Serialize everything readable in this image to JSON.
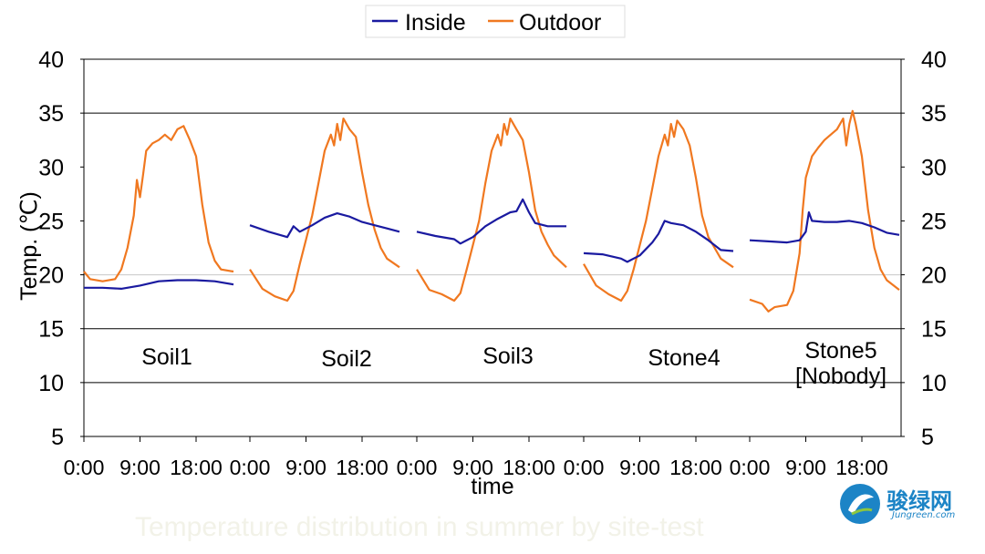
{
  "chart_data": {
    "type": "line",
    "title": "",
    "xlabel": "time",
    "ylabel": "Temp. (℃)",
    "ylim": [
      5,
      40
    ],
    "yticks": [
      40,
      35,
      30,
      25,
      20,
      15,
      10,
      5
    ],
    "xticks_per_panel": [
      "0:00",
      "9:00",
      "18:00"
    ],
    "gridlines": [
      35,
      20,
      15,
      10
    ],
    "legend": {
      "position": "top-center",
      "entries": [
        "Inside",
        "Outdoor"
      ]
    },
    "colors": {
      "Inside": "#1a1aa0",
      "Outdoor": "#f07820"
    },
    "panels": [
      {
        "label": "Soil1",
        "inside": [
          [
            0,
            18.8
          ],
          [
            3,
            18.8
          ],
          [
            6,
            18.7
          ],
          [
            9,
            19.0
          ],
          [
            12,
            19.4
          ],
          [
            15,
            19.5
          ],
          [
            18,
            19.5
          ],
          [
            21,
            19.4
          ],
          [
            24,
            19.1
          ]
        ],
        "outdoor": [
          [
            0,
            20.3
          ],
          [
            1,
            19.6
          ],
          [
            3,
            19.4
          ],
          [
            5,
            19.6
          ],
          [
            6,
            20.5
          ],
          [
            7,
            22.5
          ],
          [
            8,
            25.5
          ],
          [
            8.5,
            28.8
          ],
          [
            9,
            27.2
          ],
          [
            9.5,
            29.3
          ],
          [
            10,
            31.5
          ],
          [
            11,
            32.2
          ],
          [
            12,
            32.5
          ],
          [
            13,
            33.0
          ],
          [
            14,
            32.5
          ],
          [
            15,
            33.5
          ],
          [
            16,
            33.8
          ],
          [
            17,
            32.5
          ],
          [
            18,
            31.0
          ],
          [
            19,
            26.5
          ],
          [
            20,
            23.0
          ],
          [
            21,
            21.3
          ],
          [
            22,
            20.5
          ],
          [
            24,
            20.3
          ]
        ]
      },
      {
        "label": "Soil2",
        "inside": [
          [
            0,
            24.6
          ],
          [
            3,
            24.0
          ],
          [
            6,
            23.5
          ],
          [
            7,
            24.5
          ],
          [
            8,
            24.0
          ],
          [
            10,
            24.6
          ],
          [
            12,
            25.3
          ],
          [
            14,
            25.7
          ],
          [
            16,
            25.4
          ],
          [
            18,
            24.9
          ],
          [
            20,
            24.6
          ],
          [
            22,
            24.3
          ],
          [
            24,
            24.0
          ]
        ],
        "outdoor": [
          [
            0,
            20.5
          ],
          [
            2,
            18.7
          ],
          [
            4,
            18.0
          ],
          [
            6,
            17.6
          ],
          [
            7,
            18.5
          ],
          [
            8,
            21.0
          ],
          [
            10,
            25.5
          ],
          [
            11,
            28.5
          ],
          [
            12,
            31.5
          ],
          [
            13,
            33.0
          ],
          [
            13.5,
            32.0
          ],
          [
            14,
            34.0
          ],
          [
            14.5,
            32.5
          ],
          [
            15,
            34.5
          ],
          [
            16,
            33.5
          ],
          [
            17,
            32.8
          ],
          [
            18,
            29.5
          ],
          [
            19,
            26.5
          ],
          [
            20,
            24.2
          ],
          [
            21,
            22.5
          ],
          [
            22,
            21.5
          ],
          [
            24,
            20.7
          ]
        ]
      },
      {
        "label": "Soil3",
        "inside": [
          [
            0,
            24.0
          ],
          [
            3,
            23.6
          ],
          [
            6,
            23.3
          ],
          [
            7,
            22.9
          ],
          [
            9,
            23.5
          ],
          [
            11,
            24.5
          ],
          [
            13,
            25.2
          ],
          [
            15,
            25.8
          ],
          [
            16,
            25.9
          ],
          [
            17,
            27.0
          ],
          [
            18,
            25.8
          ],
          [
            19,
            24.8
          ],
          [
            21,
            24.5
          ],
          [
            24,
            24.5
          ]
        ],
        "outdoor": [
          [
            0,
            20.5
          ],
          [
            2,
            18.6
          ],
          [
            4,
            18.2
          ],
          [
            6,
            17.6
          ],
          [
            7,
            18.3
          ],
          [
            8,
            20.5
          ],
          [
            10,
            25.0
          ],
          [
            11,
            28.5
          ],
          [
            12,
            31.5
          ],
          [
            13,
            33.0
          ],
          [
            13.5,
            32.0
          ],
          [
            14,
            34.0
          ],
          [
            14.5,
            33.0
          ],
          [
            15,
            34.5
          ],
          [
            16,
            33.5
          ],
          [
            17,
            32.5
          ],
          [
            18,
            29.5
          ],
          [
            19,
            26.0
          ],
          [
            20,
            24.0
          ],
          [
            21,
            22.8
          ],
          [
            22,
            21.8
          ],
          [
            24,
            20.7
          ]
        ]
      },
      {
        "label": "Stone4",
        "inside": [
          [
            0,
            22.0
          ],
          [
            3,
            21.9
          ],
          [
            6,
            21.5
          ],
          [
            7,
            21.2
          ],
          [
            9,
            21.8
          ],
          [
            11,
            23.0
          ],
          [
            12,
            23.8
          ],
          [
            13,
            25.0
          ],
          [
            14,
            24.8
          ],
          [
            16,
            24.6
          ],
          [
            18,
            24.0
          ],
          [
            20,
            23.2
          ],
          [
            22,
            22.3
          ],
          [
            24,
            22.2
          ]
        ],
        "outdoor": [
          [
            0,
            21.0
          ],
          [
            2,
            19.0
          ],
          [
            4,
            18.2
          ],
          [
            6,
            17.6
          ],
          [
            7,
            18.5
          ],
          [
            8,
            20.5
          ],
          [
            10,
            25.0
          ],
          [
            11,
            28.0
          ],
          [
            12,
            31.0
          ],
          [
            13,
            33.0
          ],
          [
            13.5,
            32.0
          ],
          [
            14,
            34.0
          ],
          [
            14.5,
            32.8
          ],
          [
            15,
            34.3
          ],
          [
            16,
            33.5
          ],
          [
            17,
            32.0
          ],
          [
            18,
            29.0
          ],
          [
            19,
            25.5
          ],
          [
            20,
            23.5
          ],
          [
            21,
            22.5
          ],
          [
            22,
            21.5
          ],
          [
            24,
            20.7
          ]
        ]
      },
      {
        "label": "Stone5\n[Nobody]",
        "inside": [
          [
            0,
            23.2
          ],
          [
            3,
            23.1
          ],
          [
            6,
            23.0
          ],
          [
            8,
            23.2
          ],
          [
            9,
            24.0
          ],
          [
            9.5,
            25.8
          ],
          [
            10,
            25.0
          ],
          [
            12,
            24.9
          ],
          [
            14,
            24.9
          ],
          [
            16,
            25.0
          ],
          [
            18,
            24.8
          ],
          [
            20,
            24.4
          ],
          [
            22,
            23.9
          ],
          [
            24,
            23.7
          ]
        ],
        "outdoor": [
          [
            0,
            17.7
          ],
          [
            2,
            17.3
          ],
          [
            3,
            16.6
          ],
          [
            4,
            17.0
          ],
          [
            6,
            17.2
          ],
          [
            7,
            18.5
          ],
          [
            8,
            22.0
          ],
          [
            8.5,
            26.0
          ],
          [
            9,
            29.0
          ],
          [
            10,
            31.0
          ],
          [
            11,
            31.8
          ],
          [
            12,
            32.5
          ],
          [
            13,
            33.0
          ],
          [
            14,
            33.5
          ],
          [
            15,
            34.5
          ],
          [
            15.5,
            32.0
          ],
          [
            16,
            34.0
          ],
          [
            16.5,
            35.2
          ],
          [
            17,
            34.0
          ],
          [
            18,
            31.0
          ],
          [
            19,
            26.0
          ],
          [
            20,
            22.5
          ],
          [
            21,
            20.5
          ],
          [
            22,
            19.5
          ],
          [
            24,
            18.6
          ]
        ]
      }
    ]
  },
  "caption": "Temperature distribution in summer by site-test",
  "watermark": {
    "name": "骏绿网",
    "sub": "Jungreen.com"
  }
}
